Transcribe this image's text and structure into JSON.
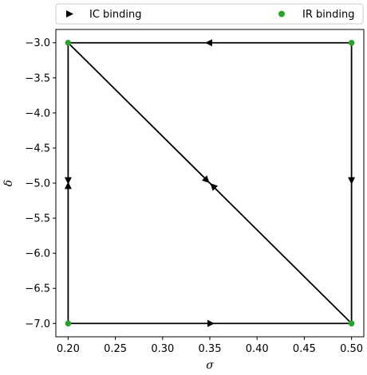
{
  "chart_data": {
    "type": "line",
    "title": "",
    "xlabel": "σ",
    "ylabel": "δ",
    "xlim": [
      0.187,
      0.513
    ],
    "ylim": [
      -7.19,
      -2.81
    ],
    "xticks": [
      0.2,
      0.25,
      0.3,
      0.35,
      0.4,
      0.45,
      0.5
    ],
    "xtick_labels": [
      "0.20",
      "0.25",
      "0.30",
      "0.35",
      "0.40",
      "0.45",
      "0.50"
    ],
    "yticks": [
      -3.0,
      -3.5,
      -4.0,
      -4.5,
      -5.0,
      -5.5,
      -6.0,
      -6.5,
      -7.0
    ],
    "ytick_labels": [
      "−3.0",
      "−3.5",
      "−4.0",
      "−4.5",
      "−5.0",
      "−5.5",
      "−6.0",
      "−6.5",
      "−7.0"
    ],
    "grid": false,
    "legend_position": "top",
    "legend": [
      {
        "label": "IC binding",
        "marker": "triangle-right",
        "color": "#000000"
      },
      {
        "label": "IR binding",
        "marker": "circle",
        "color": "#2ca02c"
      }
    ],
    "segments": [
      {
        "from": [
          0.5,
          -3.0
        ],
        "to": [
          0.2,
          -3.0
        ]
      },
      {
        "from": [
          0.2,
          -3.0
        ],
        "to": [
          0.2,
          -7.0
        ]
      },
      {
        "from": [
          0.2,
          -7.0
        ],
        "to": [
          0.5,
          -7.0
        ]
      },
      {
        "from": [
          0.5,
          -3.0
        ],
        "to": [
          0.5,
          -7.0
        ]
      },
      {
        "from": [
          0.2,
          -3.0
        ],
        "to": [
          0.5,
          -7.0
        ]
      }
    ],
    "ic_binding_arrows": [
      {
        "x": 0.35,
        "y": -3.0,
        "direction": "left"
      },
      {
        "x": 0.5,
        "y": -4.95,
        "direction": "down"
      },
      {
        "x": 0.2,
        "y": -4.95,
        "direction": "down"
      },
      {
        "x": 0.2,
        "y": -5.05,
        "direction": "up"
      },
      {
        "x": 0.346,
        "y": -4.95,
        "direction": "down-right"
      },
      {
        "x": 0.354,
        "y": -5.05,
        "direction": "up-left"
      },
      {
        "x": 0.35,
        "y": -7.0,
        "direction": "right"
      }
    ],
    "ir_binding_points": [
      {
        "x": 0.2,
        "y": -3.0
      },
      {
        "x": 0.5,
        "y": -3.0
      },
      {
        "x": 0.2,
        "y": -7.0
      },
      {
        "x": 0.5,
        "y": -7.0
      }
    ],
    "colors": {
      "line": "#000000",
      "ir_point": "#2ca02c",
      "ic_arrow": "#000000"
    }
  }
}
